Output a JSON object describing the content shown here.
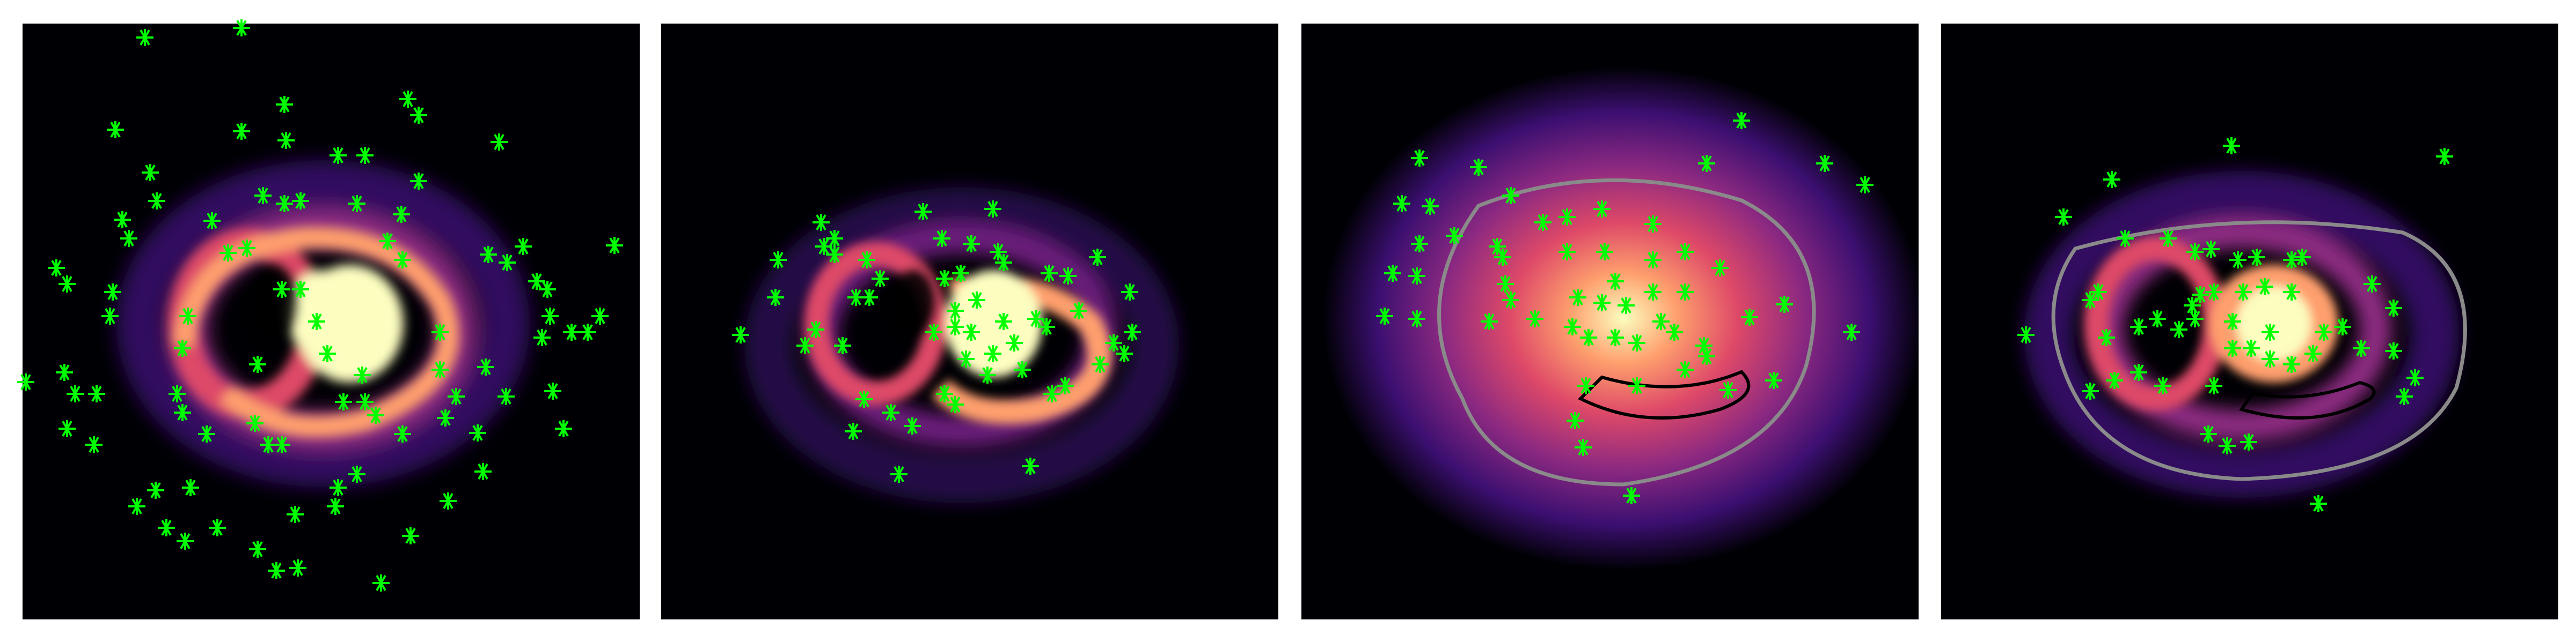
{
  "figure": {
    "panels": [
      {
        "id": "panel-1",
        "map": "spiral-galaxy-emission-map",
        "overlay": "green-star-markers",
        "contours": false
      },
      {
        "id": "panel-2",
        "map": "spiral-galaxy-emission-map-masked",
        "overlay": "green-star-markers",
        "contours": false
      },
      {
        "id": "panel-3",
        "map": "smooth-model-emission-map",
        "overlay": "green-star-markers",
        "contours": true
      },
      {
        "id": "panel-4",
        "map": "residual-emission-map",
        "overlay": "green-star-markers",
        "contours": true
      }
    ],
    "colors": {
      "background": "#000004",
      "colormap": [
        "#000004",
        "#3b0f70",
        "#8c2981",
        "#de4968",
        "#fe9f6d",
        "#fcfdbf"
      ],
      "marker": "#00ff00",
      "contour_outer": "#8a8a8a",
      "contour_inner": "#000000"
    },
    "marker_symbol": "*"
  }
}
